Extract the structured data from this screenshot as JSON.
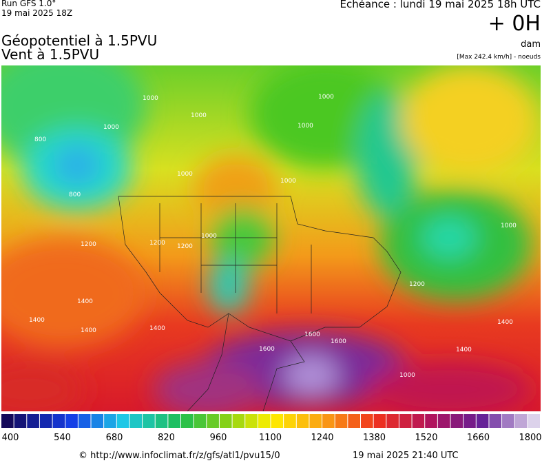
{
  "header": {
    "run": "Run GFS 1.0°",
    "run_date": "19 mai 2025 18Z",
    "echeance": "Echéance : lundi 19 mai 2025 18h UTC",
    "offset": "+ 0H",
    "unit": "dam",
    "max": "[Max 242.4 km/h] - noeuds",
    "title_line1": "Géopotentiel à 1.5PVU",
    "title_line2": "Vent à 1.5PVU"
  },
  "map": {
    "contour_labels": [
      "1000",
      "1000",
      "1000",
      "800",
      "800",
      "1000",
      "1000",
      "1000",
      "1000",
      "1000",
      "1200",
      "1200",
      "1200",
      "1400",
      "1400",
      "1400",
      "1400",
      "1600",
      "1600",
      "1600",
      "1000",
      "1200",
      "1400",
      "1400",
      "1000"
    ]
  },
  "colorbar": {
    "labels": [
      "400",
      "540",
      "680",
      "820",
      "960",
      "1100",
      "1240",
      "1380",
      "1520",
      "1660",
      "1800"
    ]
  },
  "footer": {
    "source": "© http://www.infoclimat.fr/z/gfs/atl1/pvu15/0",
    "generated": "19 mai 2025 21:40 UTC"
  }
}
